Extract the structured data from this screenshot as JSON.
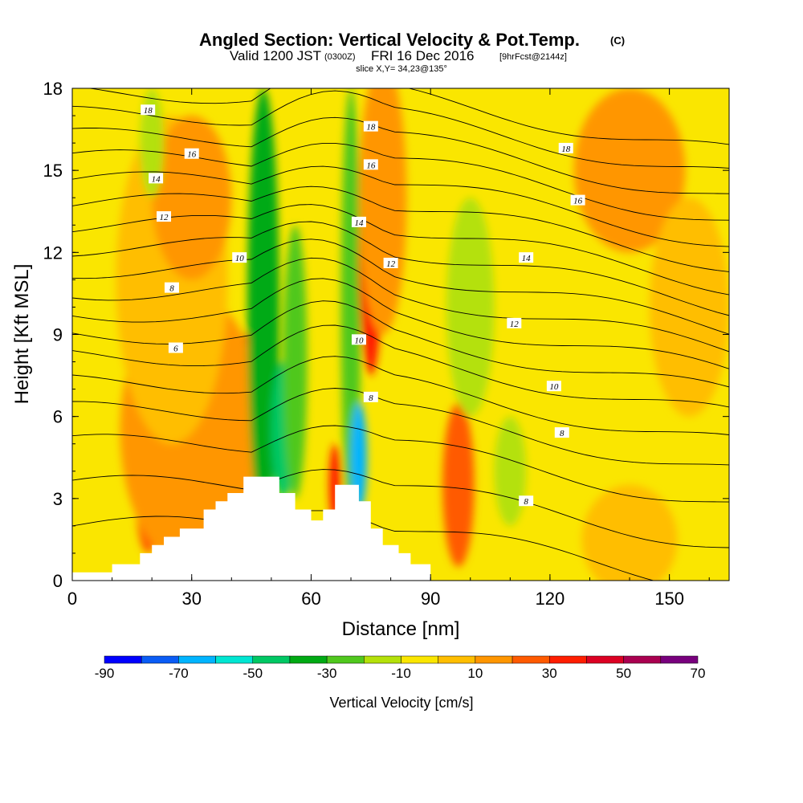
{
  "header": {
    "title": "Angled Section: Vertical Velocity & Pot.Temp.",
    "title_mark": "(C)",
    "valid_prefix": "Valid 1200 JST",
    "valid_zulu": "(0300Z)",
    "valid_date": "FRI 16 Dec 2016",
    "valid_fcst": "[9hrFcst@2144z]",
    "slice": "slice X,Y= 34,23@135°"
  },
  "chart_data": {
    "type": "heatmap",
    "title": "Angled Section: Vertical Velocity & Pot.Temp.",
    "xlabel": "Distance [nm]",
    "ylabel": "Height [Kft MSL]",
    "xlim": [
      0,
      165
    ],
    "ylim": [
      0,
      18
    ],
    "xticks": [
      0,
      30,
      60,
      90,
      120,
      150
    ],
    "yticks": [
      0,
      3,
      6,
      9,
      12,
      15,
      18
    ],
    "colorbar": {
      "label": "Vertical Velocity [cm/s]",
      "levels": [
        -90,
        -80,
        -70,
        -60,
        -50,
        -40,
        -30,
        -20,
        -10,
        0,
        10,
        20,
        30,
        40,
        50,
        60,
        70
      ],
      "tick_labels": [
        -90,
        -70,
        -50,
        -30,
        -10,
        10,
        30,
        50,
        70
      ],
      "colors": [
        "#0000ff",
        "#0a5cf5",
        "#00b4ff",
        "#00e6d2",
        "#00c864",
        "#00aa14",
        "#50c81e",
        "#b4e10a",
        "#fae600",
        "#ffbe00",
        "#ff9600",
        "#ff5a00",
        "#ff1e00",
        "#dc0023",
        "#aa0050",
        "#78007d"
      ]
    },
    "velocity_features": [
      {
        "x": 33,
        "y": 5.0,
        "value": 28
      },
      {
        "x": 44,
        "y": 6.0,
        "value": 32
      },
      {
        "x": 19,
        "y": 3.0,
        "value": 28
      },
      {
        "x": 48,
        "y": 10.0,
        "value": -35
      },
      {
        "x": 53,
        "y": 5.5,
        "value": -50
      },
      {
        "x": 70,
        "y": 10.0,
        "value": -30
      },
      {
        "x": 72,
        "y": 4.5,
        "value": -65
      },
      {
        "x": 66,
        "y": 3.5,
        "value": 35
      },
      {
        "x": 75,
        "y": 12.0,
        "value": 32
      },
      {
        "x": 97,
        "y": 3.5,
        "value": 28
      },
      {
        "x": 100,
        "y": 10.0,
        "value": -12
      },
      {
        "x": 30,
        "y": 14.0,
        "value": 12
      },
      {
        "x": 140,
        "y": 15.0,
        "value": 12
      },
      {
        "x": 155,
        "y": 10.0,
        "value": 8
      }
    ],
    "theta_contours": {
      "levels": [
        4,
        6,
        8,
        10,
        12,
        14,
        16,
        18
      ],
      "labels": [
        {
          "x": 26,
          "y": 8.5,
          "text": "6"
        },
        {
          "x": 25,
          "y": 10.7,
          "text": "8"
        },
        {
          "x": 42,
          "y": 11.8,
          "text": "10"
        },
        {
          "x": 23,
          "y": 13.3,
          "text": "12"
        },
        {
          "x": 21,
          "y": 14.7,
          "text": "14"
        },
        {
          "x": 30,
          "y": 15.6,
          "text": "16"
        },
        {
          "x": 19,
          "y": 17.2,
          "text": "18"
        },
        {
          "x": 75,
          "y": 16.6,
          "text": "18"
        },
        {
          "x": 75,
          "y": 15.2,
          "text": "16"
        },
        {
          "x": 72,
          "y": 13.1,
          "text": "14"
        },
        {
          "x": 80,
          "y": 11.6,
          "text": "12"
        },
        {
          "x": 72,
          "y": 8.8,
          "text": "10"
        },
        {
          "x": 75,
          "y": 6.7,
          "text": "8"
        },
        {
          "x": 124,
          "y": 15.8,
          "text": "18"
        },
        {
          "x": 127,
          "y": 13.9,
          "text": "16"
        },
        {
          "x": 114,
          "y": 11.8,
          "text": "14"
        },
        {
          "x": 111,
          "y": 9.4,
          "text": "12"
        },
        {
          "x": 121,
          "y": 7.1,
          "text": "10"
        },
        {
          "x": 123,
          "y": 5.4,
          "text": "8"
        },
        {
          "x": 114,
          "y": 2.9,
          "text": "8"
        }
      ]
    },
    "terrain": [
      [
        0,
        0.3
      ],
      [
        10,
        0.3
      ],
      [
        10,
        0.6
      ],
      [
        17,
        0.6
      ],
      [
        17,
        1.0
      ],
      [
        20,
        1.0
      ],
      [
        20,
        1.3
      ],
      [
        23,
        1.3
      ],
      [
        23,
        1.6
      ],
      [
        27,
        1.6
      ],
      [
        27,
        1.9
      ],
      [
        33,
        1.9
      ],
      [
        33,
        2.6
      ],
      [
        36,
        2.6
      ],
      [
        36,
        2.9
      ],
      [
        39,
        2.9
      ],
      [
        39,
        3.2
      ],
      [
        43,
        3.2
      ],
      [
        43,
        3.8
      ],
      [
        52,
        3.8
      ],
      [
        52,
        3.2
      ],
      [
        56,
        3.2
      ],
      [
        56,
        2.6
      ],
      [
        60,
        2.6
      ],
      [
        60,
        2.2
      ],
      [
        63,
        2.2
      ],
      [
        63,
        2.6
      ],
      [
        66,
        2.6
      ],
      [
        66,
        3.5
      ],
      [
        72,
        3.5
      ],
      [
        72,
        2.9
      ],
      [
        75,
        2.9
      ],
      [
        75,
        1.9
      ],
      [
        78,
        1.9
      ],
      [
        78,
        1.3
      ],
      [
        82,
        1.3
      ],
      [
        82,
        1.0
      ],
      [
        85,
        1.0
      ],
      [
        85,
        0.6
      ],
      [
        90,
        0.6
      ],
      [
        90,
        0
      ]
    ]
  }
}
